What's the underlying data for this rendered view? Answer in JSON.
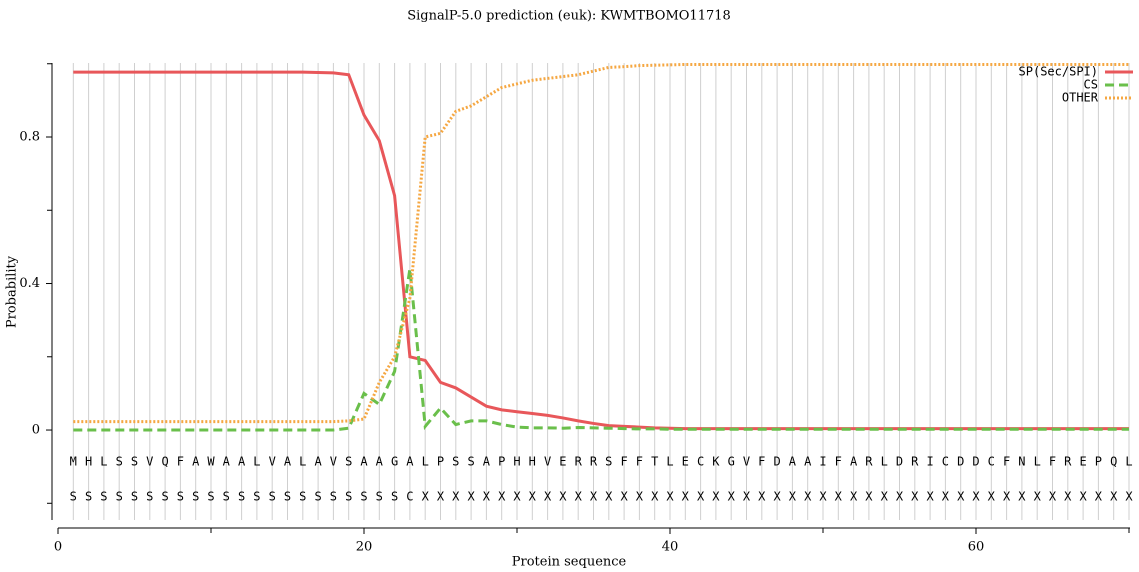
{
  "chart_data": {
    "type": "line",
    "title": "SignalP-5.0 prediction (euk):  KWMTBOMO11718",
    "x_label": "Protein sequence",
    "y_label": "Probability",
    "x": [
      1,
      2,
      3,
      4,
      5,
      6,
      7,
      8,
      9,
      10,
      11,
      12,
      13,
      14,
      15,
      16,
      17,
      18,
      19,
      20,
      21,
      22,
      23,
      24,
      25,
      26,
      27,
      28,
      29,
      30,
      31,
      32,
      33,
      34,
      35,
      36,
      37,
      38,
      39,
      40,
      41,
      42,
      43,
      44,
      45,
      46,
      47,
      48,
      49,
      50,
      51,
      52,
      53,
      54,
      55,
      56,
      57,
      58,
      59,
      60,
      61,
      62,
      63,
      64,
      65,
      66,
      67,
      68,
      69,
      70
    ],
    "residues": [
      "M",
      "H",
      "L",
      "S",
      "S",
      "V",
      "Q",
      "F",
      "A",
      "W",
      "A",
      "A",
      "L",
      "V",
      "A",
      "L",
      "A",
      "V",
      "S",
      "A",
      "A",
      "G",
      "A",
      "L",
      "P",
      "S",
      "S",
      "A",
      "P",
      "H",
      "H",
      "V",
      "E",
      "R",
      "R",
      "S",
      "F",
      "F",
      "T",
      "L",
      "E",
      "C",
      "K",
      "G",
      "V",
      "F",
      "D",
      "A",
      "A",
      "I",
      "F",
      "A",
      "R",
      "L",
      "D",
      "R",
      "I",
      "C",
      "D",
      "D",
      "C",
      "F",
      "N",
      "L",
      "F",
      "R",
      "E",
      "P",
      "Q",
      "L"
    ],
    "annotations": [
      "S",
      "S",
      "S",
      "S",
      "S",
      "S",
      "S",
      "S",
      "S",
      "S",
      "S",
      "S",
      "S",
      "S",
      "S",
      "S",
      "S",
      "S",
      "S",
      "S",
      "S",
      "S",
      "C",
      "X",
      "X",
      "X",
      "X",
      "X",
      "X",
      "X",
      "X",
      "X",
      "X",
      "X",
      "X",
      "X",
      "X",
      "X",
      "X",
      "X",
      "X",
      "X",
      "X",
      "X",
      "X",
      "X",
      "X",
      "X",
      "X",
      "X",
      "X",
      "X",
      "X",
      "X",
      "X",
      "X",
      "X",
      "X",
      "X",
      "X",
      "X",
      "X",
      "X",
      "X",
      "X",
      "X",
      "X",
      "X",
      "X",
      "X"
    ],
    "series": [
      {
        "name": "SP(Sec/SPI)",
        "color": "#e8575a",
        "dash": "solid",
        "values": [
          0.977,
          0.977,
          0.977,
          0.977,
          0.977,
          0.977,
          0.977,
          0.977,
          0.977,
          0.977,
          0.977,
          0.977,
          0.977,
          0.977,
          0.977,
          0.977,
          0.976,
          0.975,
          0.97,
          0.86,
          0.79,
          0.64,
          0.2,
          0.19,
          0.13,
          0.115,
          0.09,
          0.065,
          0.055,
          0.05,
          0.045,
          0.04,
          0.033,
          0.025,
          0.018,
          0.012,
          0.01,
          0.008,
          0.006,
          0.005,
          0.004,
          0.004,
          0.004,
          0.004,
          0.004,
          0.004,
          0.004,
          0.004,
          0.004,
          0.004,
          0.004,
          0.004,
          0.004,
          0.004,
          0.004,
          0.004,
          0.004,
          0.004,
          0.004,
          0.004,
          0.004,
          0.004,
          0.004,
          0.004,
          0.004,
          0.004,
          0.004,
          0.004,
          0.004,
          0.004
        ]
      },
      {
        "name": "CS",
        "color": "#6abf4b",
        "dash": "dashed",
        "values": [
          0,
          0,
          0,
          0,
          0,
          0,
          0,
          0,
          0,
          0,
          0,
          0,
          0,
          0,
          0,
          0,
          0,
          0,
          0.005,
          0.1,
          0.07,
          0.16,
          0.44,
          0.01,
          0.06,
          0.015,
          0.025,
          0.025,
          0.015,
          0.008,
          0.006,
          0.006,
          0.005,
          0.007,
          0.006,
          0.005,
          0.004,
          0.003,
          0.003,
          0.002,
          0.002,
          0.002,
          0.002,
          0.002,
          0.002,
          0.002,
          0.002,
          0.002,
          0.002,
          0.002,
          0.002,
          0.002,
          0.002,
          0.002,
          0.002,
          0.002,
          0.002,
          0.002,
          0.002,
          0.002,
          0.002,
          0.002,
          0.002,
          0.002,
          0.002,
          0.002,
          0.002,
          0.002,
          0.002,
          0.002
        ]
      },
      {
        "name": "OTHER",
        "color": "#f5a742",
        "dash": "dotted",
        "values": [
          0.023,
          0.023,
          0.023,
          0.023,
          0.023,
          0.023,
          0.023,
          0.023,
          0.023,
          0.023,
          0.023,
          0.023,
          0.023,
          0.023,
          0.023,
          0.023,
          0.023,
          0.023,
          0.025,
          0.03,
          0.13,
          0.2,
          0.36,
          0.8,
          0.81,
          0.87,
          0.885,
          0.91,
          0.935,
          0.945,
          0.955,
          0.96,
          0.965,
          0.97,
          0.98,
          0.99,
          0.992,
          0.995,
          0.996,
          0.997,
          0.998,
          0.998,
          0.998,
          0.998,
          0.998,
          0.998,
          0.998,
          0.998,
          0.998,
          0.998,
          0.998,
          0.998,
          0.998,
          0.998,
          0.998,
          0.998,
          0.998,
          0.998,
          0.998,
          0.998,
          0.998,
          0.998,
          0.998,
          0.998,
          0.998,
          0.998,
          0.998,
          0.998,
          0.998,
          0.998
        ]
      }
    ],
    "xlim": [
      0,
      70
    ],
    "xticks": [
      0,
      20,
      40,
      60
    ],
    "xminor_ticks": [
      10,
      30,
      50,
      70
    ],
    "ylim": [
      -0.25,
      1
    ],
    "yticks": [
      0,
      0.4,
      0.8
    ],
    "yminor_ticks": [
      -0.2,
      0.2,
      0.6,
      1
    ],
    "legend": "upper right"
  }
}
